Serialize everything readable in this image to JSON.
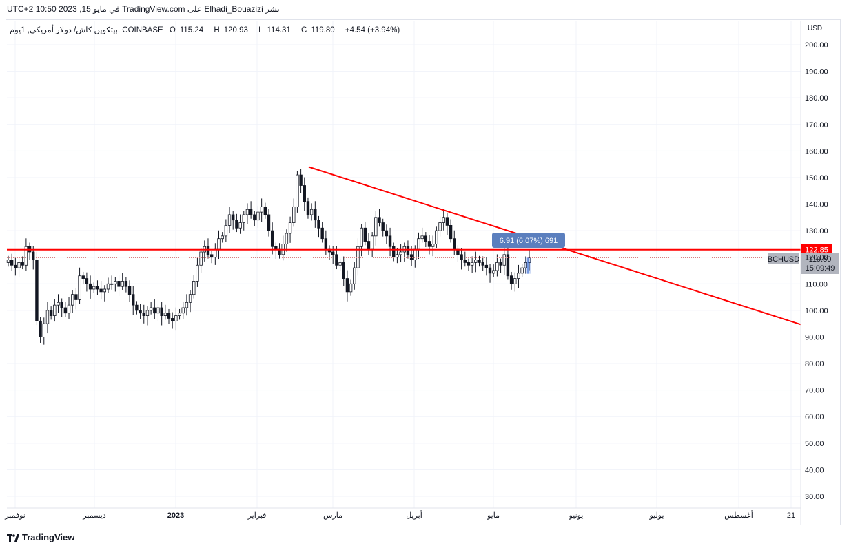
{
  "caption": "نشر Elhadi_Bouazizi على TradingView.com في مايو 15, 2023 10:50 UTC+2",
  "legend": {
    "symbol": "بيتكوين كاش/ دولار أمريكي, 1يوم, COINBASE",
    "open_label": "O",
    "open": "115.24",
    "high_label": "H",
    "high": "120.93",
    "low_label": "L",
    "low": "114.31",
    "close_label": "C",
    "close": "119.80",
    "change": "+4.54 (+3.94%)"
  },
  "currency": "USD",
  "ticker_tag": "BCHUSD",
  "price_tag": "119.80",
  "countdown": "15:09:49",
  "level_tag": "122.85",
  "measure_label": "6.91 (6.07%) 691",
  "brand": "TradingView",
  "colors": {
    "up": "#26a69a",
    "down": "#131722",
    "line": "#ff0000",
    "measure": "#5b7fbe"
  },
  "chart_data": {
    "type": "candlestick",
    "y_axis": {
      "min": 25,
      "max": 205,
      "ticks": [
        "30.00",
        "40.00",
        "50.00",
        "60.00",
        "70.00",
        "80.00",
        "90.00",
        "100.00",
        "110.00",
        "120.00",
        "130.00",
        "140.00",
        "150.00",
        "160.00",
        "170.00",
        "180.00",
        "190.00",
        "200.00"
      ]
    },
    "x_axis": {
      "ticks": [
        "نوفمبر",
        "ديسمبر",
        "2023",
        "فبراير",
        "مارس",
        "أبريل",
        "مايو",
        "يونيو",
        "يوليو",
        "أغسطس",
        "21"
      ]
    },
    "close_series": [
      119,
      117,
      116,
      118,
      117,
      124,
      122,
      119,
      96,
      90,
      95,
      100,
      98,
      102,
      103,
      101,
      99,
      102,
      106,
      104,
      113,
      112,
      110,
      108,
      109,
      108,
      107,
      108,
      110,
      110,
      111,
      109,
      111,
      109,
      106,
      102,
      100,
      99,
      98,
      100,
      101,
      99,
      101,
      98,
      99,
      97,
      96,
      98,
      99,
      101,
      103,
      106,
      111,
      117,
      122,
      124,
      121,
      120,
      123,
      127,
      128,
      132,
      136,
      134,
      131,
      133,
      136,
      138,
      136,
      134,
      137,
      139,
      136,
      130,
      124,
      123,
      121,
      125,
      129,
      133,
      139,
      151,
      147,
      141,
      136,
      138,
      134,
      131,
      127,
      123,
      122,
      121,
      117,
      118,
      112,
      107,
      110,
      116,
      124,
      131,
      126,
      123,
      128,
      135,
      133,
      130,
      128,
      124,
      120,
      121,
      122,
      124,
      121,
      119,
      123,
      127,
      128,
      126,
      124,
      125,
      130,
      133,
      135,
      132,
      127,
      123,
      121,
      119,
      118,
      117,
      118,
      119,
      118,
      117,
      116,
      114,
      115,
      118,
      117,
      121,
      113,
      110,
      112,
      114,
      116,
      118,
      119.8
    ],
    "trendline": {
      "start": [
        "2023-02-20",
        154.0
      ],
      "end": [
        "2023-08-28",
        94.7
      ]
    },
    "horizontal_level": 122.85,
    "last_price": 119.8
  }
}
